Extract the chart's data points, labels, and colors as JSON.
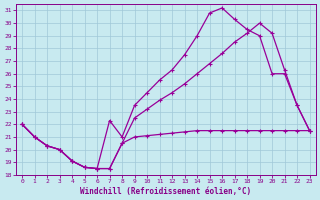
{
  "xlabel": "Windchill (Refroidissement éolien,°C)",
  "bg_color": "#c8eaf0",
  "grid_color": "#a0c8d8",
  "line_color": "#990099",
  "xlim": [
    -0.5,
    23.5
  ],
  "ylim": [
    18,
    31.5
  ],
  "xticks": [
    0,
    1,
    2,
    3,
    4,
    5,
    6,
    7,
    8,
    9,
    10,
    11,
    12,
    13,
    14,
    15,
    16,
    17,
    18,
    19,
    20,
    21,
    22,
    23
  ],
  "yticks": [
    18,
    19,
    20,
    21,
    22,
    23,
    24,
    25,
    26,
    27,
    28,
    29,
    30,
    31
  ],
  "curve1_x": [
    0,
    1,
    2,
    3,
    4,
    5,
    6,
    7,
    8,
    9,
    10,
    11,
    12,
    13,
    14,
    15,
    16,
    17,
    18,
    19,
    20,
    21,
    22,
    23
  ],
  "curve1_y": [
    22.0,
    21.0,
    20.3,
    20.0,
    19.1,
    18.6,
    18.5,
    18.5,
    20.5,
    21.0,
    21.1,
    21.2,
    21.3,
    21.4,
    21.5,
    21.5,
    21.5,
    21.5,
    21.5,
    21.5,
    21.5,
    21.5,
    21.5,
    21.5
  ],
  "curve2_x": [
    0,
    1,
    2,
    3,
    4,
    5,
    6,
    7,
    8,
    9,
    10,
    11,
    12,
    13,
    14,
    15,
    16,
    17,
    18,
    19,
    20,
    21,
    22,
    23
  ],
  "curve2_y": [
    22.0,
    21.0,
    20.3,
    20.0,
    19.1,
    18.6,
    18.5,
    18.5,
    20.5,
    22.5,
    23.2,
    23.9,
    24.5,
    25.2,
    26.0,
    26.8,
    27.6,
    28.5,
    29.2,
    30.0,
    29.2,
    26.3,
    23.5,
    21.5
  ],
  "curve3_x": [
    0,
    1,
    2,
    3,
    4,
    5,
    6,
    7,
    8,
    9,
    10,
    11,
    12,
    13,
    14,
    15,
    16,
    17,
    18,
    19,
    20,
    21,
    22,
    23
  ],
  "curve3_y": [
    22.0,
    21.0,
    20.3,
    20.0,
    19.1,
    18.6,
    18.5,
    22.3,
    21.0,
    23.5,
    24.5,
    25.5,
    26.3,
    27.5,
    29.0,
    30.8,
    31.2,
    30.3,
    29.5,
    29.0,
    26.0,
    26.0,
    23.5,
    21.5
  ]
}
